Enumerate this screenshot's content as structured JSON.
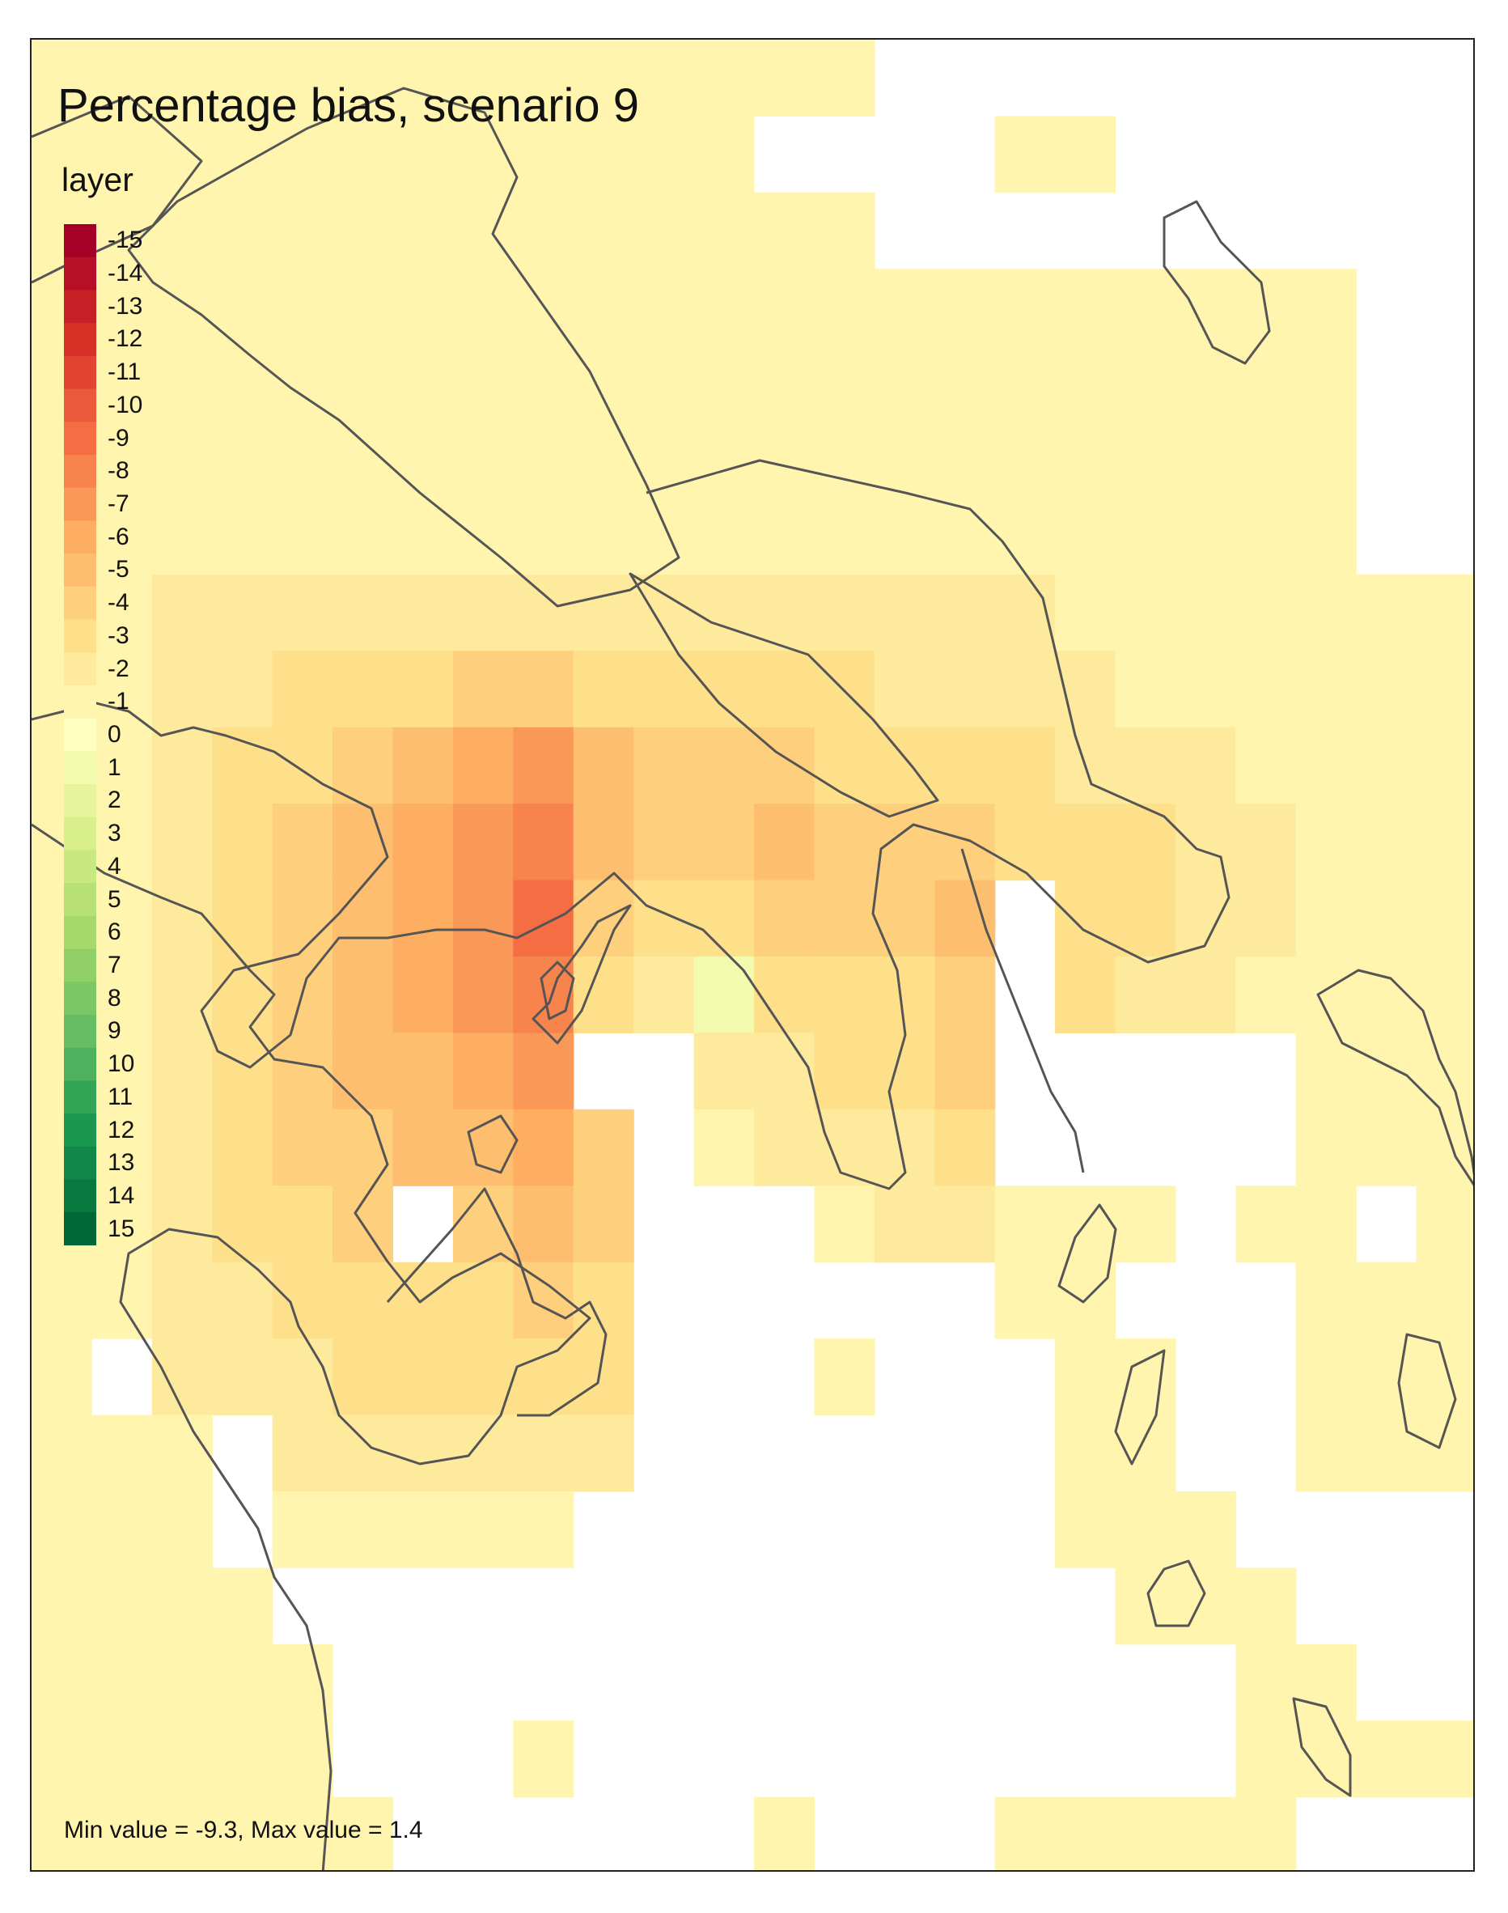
{
  "title": "Percentage bias, scenario 9",
  "legend": {
    "title": "layer",
    "labels": [
      "-15",
      "-14",
      "-13",
      "-12",
      "-11",
      "-10",
      "-9",
      "-8",
      "-7",
      "-6",
      "-5",
      "-4",
      "-3",
      "-2",
      "-1",
      "0",
      "1",
      "2",
      "3",
      "4",
      "5",
      "6",
      "7",
      "8",
      "9",
      "10",
      "11",
      "12",
      "13",
      "14",
      "15"
    ]
  },
  "footer": {
    "minmax": "Min value = -9.3, Max value = 1.4"
  },
  "colors": {
    "scale_min": "#a50026",
    "scale_mid": "#ffffbf",
    "scale_max": "#006837",
    "coastline": "#555555",
    "frame": "#222222"
  },
  "raster_data": {
    "value_range": [
      -15,
      15
    ],
    "min_value": -9.3,
    "max_value": 1.4,
    "nodata": "null",
    "grid": [
      [
        -1,
        -1,
        -1,
        -1,
        -1,
        -1,
        -1,
        -1,
        -1,
        -1,
        -1,
        -1,
        -1,
        -1,
        null,
        null,
        null,
        null,
        null,
        null,
        null,
        null,
        null,
        null
      ],
      [
        -1,
        -1,
        -1,
        -1,
        -1,
        -1,
        -1,
        -1,
        -1,
        -1,
        -1,
        -1,
        null,
        null,
        null,
        null,
        -1,
        -1,
        null,
        null,
        null,
        null,
        null,
        null
      ],
      [
        -1,
        -1,
        -1,
        -1,
        -1,
        -1,
        -1,
        -1,
        -1,
        -1,
        -1,
        -1,
        -1,
        -1,
        null,
        null,
        null,
        null,
        null,
        null,
        null,
        null,
        null,
        null
      ],
      [
        -1,
        -1,
        -1,
        -1,
        -1,
        -1,
        -1,
        -1,
        -1,
        -1,
        -1,
        -1,
        -1,
        -1,
        -1,
        -1,
        -1,
        -1,
        -1,
        -1,
        -1,
        -1,
        null,
        null
      ],
      [
        -1,
        -1,
        -1,
        -1,
        -1,
        -1,
        -1,
        -1,
        -1,
        -1,
        -1,
        -1,
        -1,
        -1,
        -1,
        -1,
        -1,
        -1,
        -1,
        -1,
        -1,
        -1,
        null,
        null
      ],
      [
        -1,
        -1,
        -1,
        -1,
        -1,
        -1,
        -1,
        -1,
        -1,
        -1,
        -1,
        -1,
        -1,
        -1,
        -1,
        -1,
        -1,
        -1,
        -1,
        -1,
        -1,
        -1,
        null,
        null
      ],
      [
        -1,
        -1,
        -1,
        -1,
        -1,
        -1,
        -1,
        -1,
        -1,
        -1,
        -1,
        -1,
        -1,
        -1,
        -1,
        -1,
        -1,
        -1,
        -1,
        -1,
        -1,
        -1,
        null,
        null
      ],
      [
        -1,
        -1,
        -2,
        -2,
        -2,
        -2,
        -2,
        -2,
        -2,
        -2,
        -2,
        -2,
        -2,
        -2,
        -2,
        -2,
        -2,
        -1,
        -1,
        -1,
        -1,
        -1,
        -1,
        -1
      ],
      [
        -1,
        -1,
        -2,
        -2,
        -3,
        -3,
        -3,
        -4,
        -4,
        -3,
        -3,
        -3,
        -3,
        -3,
        -2,
        -2,
        -2,
        -2,
        -1,
        -1,
        -1,
        -1,
        -1,
        -1
      ],
      [
        -1,
        -1,
        -2,
        -3,
        -3,
        -4,
        -5,
        -6,
        -7,
        -5,
        -4,
        -4,
        -4,
        -3,
        -3,
        -3,
        -3,
        -2,
        -2,
        -2,
        -1,
        -1,
        -1,
        -1
      ],
      [
        -1,
        -1,
        -2,
        -3,
        -4,
        -5,
        -6,
        -7,
        -8,
        -5,
        -4,
        -4,
        -5,
        -4,
        -4,
        -4,
        -3,
        -3,
        -3,
        -2,
        -2,
        -1,
        -1,
        -1
      ],
      [
        -1,
        -1,
        -2,
        -3,
        -4,
        -5,
        -6,
        -7,
        -9,
        -4,
        -3,
        -3,
        -4,
        -4,
        -4,
        -5,
        null,
        -3,
        -3,
        -2,
        -2,
        -1,
        -1,
        -1
      ],
      [
        -1,
        -1,
        -2,
        -3,
        -4,
        -5,
        -6,
        -7,
        -8,
        -3,
        -2,
        1,
        -3,
        -3,
        -3,
        -4,
        null,
        -3,
        -2,
        -2,
        -1,
        -1,
        -1,
        -1
      ],
      [
        -1,
        -1,
        -2,
        -3,
        -4,
        -5,
        -5,
        -6,
        -7,
        null,
        null,
        -2,
        -2,
        -3,
        -3,
        -4,
        null,
        null,
        null,
        null,
        null,
        -1,
        -1,
        -1
      ],
      [
        -1,
        -1,
        -2,
        -3,
        -4,
        -4,
        -5,
        -5,
        -6,
        -4,
        null,
        -1,
        -2,
        -2,
        -2,
        -3,
        null,
        null,
        null,
        null,
        null,
        -1,
        -1,
        -1
      ],
      [
        -1,
        -1,
        -2,
        -3,
        -3,
        -4,
        null,
        -4,
        -5,
        -4,
        null,
        null,
        null,
        -1,
        -2,
        -2,
        -1,
        -1,
        -1,
        null,
        -1,
        -1,
        null,
        -1
      ],
      [
        -1,
        -1,
        -2,
        -2,
        -3,
        -3,
        -3,
        -3,
        -4,
        -3,
        null,
        null,
        null,
        null,
        null,
        null,
        -1,
        -1,
        null,
        null,
        null,
        -1,
        -1,
        -1
      ],
      [
        -1,
        null,
        -2,
        -2,
        -2,
        -3,
        -3,
        -3,
        -3,
        -3,
        null,
        null,
        null,
        -1,
        null,
        null,
        null,
        -1,
        -1,
        null,
        null,
        -1,
        -1,
        -1
      ],
      [
        -1,
        -1,
        -1,
        null,
        -2,
        -2,
        -2,
        -2,
        -2,
        -2,
        null,
        null,
        null,
        null,
        null,
        null,
        null,
        -1,
        -1,
        null,
        null,
        -1,
        -1,
        -1
      ],
      [
        -1,
        -1,
        -1,
        null,
        -1,
        -1,
        -1,
        -1,
        -1,
        null,
        null,
        null,
        null,
        null,
        null,
        null,
        null,
        -1,
        -1,
        -1,
        null,
        null,
        null,
        null
      ],
      [
        -1,
        -1,
        -1,
        -1,
        null,
        null,
        null,
        null,
        null,
        null,
        null,
        null,
        null,
        null,
        null,
        null,
        null,
        null,
        -1,
        -1,
        -1,
        null,
        null,
        null
      ],
      [
        -1,
        -1,
        -1,
        -1,
        -1,
        null,
        null,
        null,
        null,
        null,
        null,
        null,
        null,
        null,
        null,
        null,
        null,
        null,
        null,
        null,
        -1,
        -1,
        null,
        null
      ],
      [
        -1,
        -1,
        -1,
        -1,
        -1,
        null,
        null,
        null,
        -1,
        null,
        null,
        null,
        null,
        null,
        null,
        null,
        null,
        null,
        null,
        null,
        -1,
        -1,
        -1,
        -1
      ],
      [
        -1,
        -1,
        -1,
        -1,
        -1,
        -1,
        null,
        null,
        null,
        null,
        null,
        null,
        -1,
        null,
        null,
        null,
        -1,
        -1,
        -1,
        -1,
        -1,
        null,
        null,
        null
      ]
    ]
  }
}
